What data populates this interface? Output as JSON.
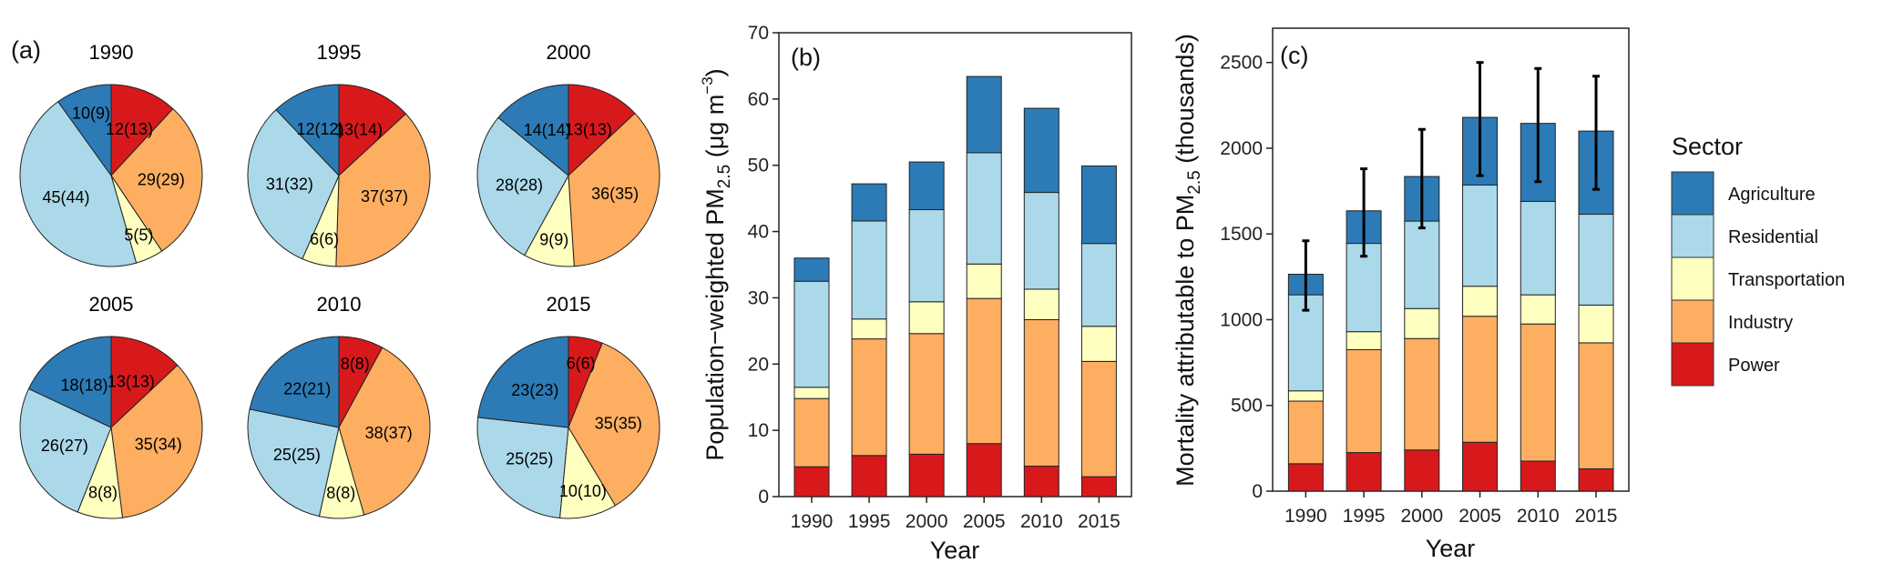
{
  "sectors": [
    "Power",
    "Industry",
    "Transportation",
    "Residential",
    "Agriculture"
  ],
  "colors": {
    "Power": "#d7191c",
    "Industry": "#fdae61",
    "Transportation": "#ffffbf",
    "Residential": "#abd9e9",
    "Agriculture": "#2c7bb6"
  },
  "chart_data": [
    {
      "type": "pie",
      "panel_label": "(a)",
      "pies": [
        {
          "title": "1990",
          "values": [
            12,
            29,
            5,
            45,
            10
          ],
          "labels": [
            "12(13)",
            "29(29)",
            "5(5)",
            "45(44)",
            "10(9)"
          ]
        },
        {
          "title": "1995",
          "values": [
            13,
            37,
            6,
            31,
            12
          ],
          "labels": [
            "13(14)",
            "37(37)",
            "6(6)",
            "31(32)",
            "12(12)"
          ]
        },
        {
          "title": "2000",
          "values": [
            13,
            36,
            9,
            28,
            14
          ],
          "labels": [
            "13(13)",
            "36(35)",
            "9(9)",
            "28(28)",
            "14(14)"
          ]
        },
        {
          "title": "2005",
          "values": [
            13,
            35,
            8,
            26,
            18
          ],
          "labels": [
            "13(13)",
            "35(34)",
            "8(8)",
            "26(27)",
            "18(18)"
          ]
        },
        {
          "title": "2010",
          "values": [
            8,
            38,
            8,
            25,
            22
          ],
          "labels": [
            "8(8)",
            "38(37)",
            "8(8)",
            "25(25)",
            "22(21)"
          ]
        },
        {
          "title": "2015",
          "values": [
            6,
            35,
            10,
            25,
            23
          ],
          "labels": [
            "6(6)",
            "35(35)",
            "10(10)",
            "25(25)",
            "23(23)"
          ]
        }
      ]
    },
    {
      "type": "bar",
      "stacked": true,
      "panel_label": "(b)",
      "categories": [
        "1990",
        "1995",
        "2000",
        "2005",
        "2010",
        "2015"
      ],
      "series": [
        {
          "name": "Power",
          "values": [
            4.5,
            6.2,
            6.4,
            8.0,
            4.6,
            3.0
          ]
        },
        {
          "name": "Industry",
          "values": [
            10.3,
            17.6,
            18.2,
            21.9,
            22.1,
            17.4
          ]
        },
        {
          "name": "Transportation",
          "values": [
            1.7,
            3.0,
            4.8,
            5.2,
            4.6,
            5.3
          ]
        },
        {
          "name": "Residential",
          "values": [
            16.0,
            14.8,
            13.9,
            16.8,
            14.6,
            12.5
          ]
        },
        {
          "name": "Agriculture",
          "values": [
            3.5,
            5.6,
            7.2,
            11.5,
            12.7,
            11.7
          ]
        }
      ],
      "xlabel": "Year",
      "ylabel_parts": [
        "Population−weighted PM",
        "2.5",
        " (μg m",
        "−3",
        ")"
      ],
      "ylim": [
        0,
        70
      ],
      "yticks": [
        0,
        10,
        20,
        30,
        40,
        50,
        60,
        70
      ]
    },
    {
      "type": "bar",
      "stacked": true,
      "panel_label": "(c)",
      "categories": [
        "1990",
        "1995",
        "2000",
        "2005",
        "2010",
        "2015"
      ],
      "series": [
        {
          "name": "Power",
          "values": [
            160,
            225,
            240,
            285,
            175,
            130
          ]
        },
        {
          "name": "Industry",
          "values": [
            365,
            600,
            650,
            735,
            800,
            735
          ]
        },
        {
          "name": "Transportation",
          "values": [
            60,
            105,
            175,
            175,
            170,
            220
          ]
        },
        {
          "name": "Residential",
          "values": [
            560,
            515,
            510,
            590,
            545,
            530
          ]
        },
        {
          "name": "Agriculture",
          "values": [
            120,
            190,
            260,
            395,
            455,
            485
          ]
        }
      ],
      "error_bars": [
        [
          1055,
          1460
        ],
        [
          1370,
          1880
        ],
        [
          1535,
          2110
        ],
        [
          1840,
          2500
        ],
        [
          1805,
          2465
        ],
        [
          1760,
          2420
        ]
      ],
      "xlabel": "Year",
      "ylabel_parts": [
        "Mortality attributable to PM",
        "2.5",
        " (thousands)"
      ],
      "ylim": [
        0,
        2700
      ],
      "yticks": [
        0,
        500,
        1000,
        1500,
        2000,
        2500
      ],
      "legend": {
        "title": "Sector",
        "placement": "right",
        "order": [
          "Agriculture",
          "Residential",
          "Transportation",
          "Industry",
          "Power"
        ]
      }
    }
  ]
}
